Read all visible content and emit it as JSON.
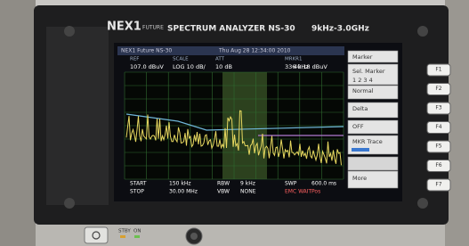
{
  "brand": {
    "logo": "NEX1",
    "logo_sub": "FUTURE",
    "model": "SPECTRUM ANALYZER NS-30",
    "range": "9kHz-3.0GHz"
  },
  "screen": {
    "header_left": "NEX1 Future NS-30",
    "header_date": "Thu Aug 28 12:34:00 2010",
    "status": [
      {
        "label": "REF",
        "value": "107.0 dBuV"
      },
      {
        "label": "SCALE",
        "value": "LOG 10 dB/"
      },
      {
        "label": "ATT",
        "value": "10 dB"
      },
      {
        "label": "MRKR1",
        "value": "336 kHz"
      }
    ],
    "marker_level": "40.18 dBuV",
    "footer": [
      [
        "START",
        "150 kHz",
        "RBW",
        "9 kHz",
        "SWP",
        "600.0 ms"
      ],
      [
        "STOP",
        "30.00 MHz",
        "VBW",
        "NONE",
        "EMC WAIT",
        "Pos"
      ]
    ]
  },
  "menu": [
    "Marker",
    "Sel. Marker",
    "1 2 3 4",
    "Normal",
    "Delta",
    "OFF",
    "MKR Trace",
    "More"
  ],
  "softkeys": [
    "F1",
    "F2",
    "F3",
    "F4",
    "F5",
    "F6",
    "F7"
  ],
  "panel": {
    "standby": "STBY",
    "on": "ON"
  }
}
